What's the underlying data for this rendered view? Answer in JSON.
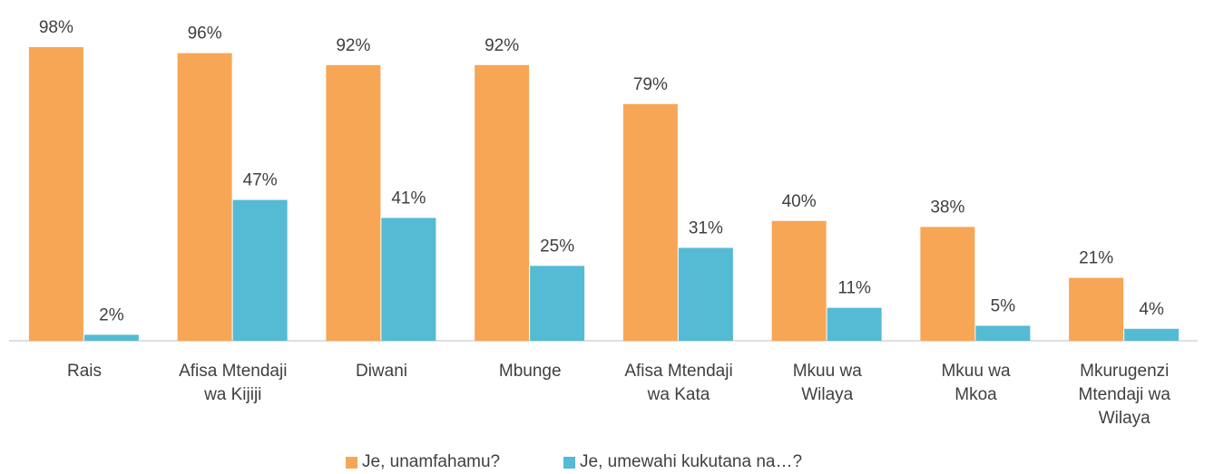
{
  "chart_data": {
    "type": "bar",
    "categories": [
      "Rais",
      "Afisa Mtendaji\nwa Kijiji",
      "Diwani",
      "Mbunge",
      "Afisa Mtendaji\nwa Kata",
      "Mkuu wa\nWilaya",
      "Mkuu wa\nMkoa",
      "Mkurugenzi\nMtendaji wa\nWilaya"
    ],
    "series": [
      {
        "name": "Je, unamfahamu?",
        "color": "#f7a655",
        "values": [
          98,
          96,
          92,
          92,
          79,
          40,
          38,
          21
        ],
        "value_labels": [
          "98%",
          "96%",
          "92%",
          "92%",
          "79%",
          "40%",
          "38%",
          "21%"
        ]
      },
      {
        "name": "Je, umewahi kukutana na…?",
        "color": "#55bad4",
        "values": [
          2,
          47,
          41,
          25,
          31,
          11,
          5,
          4
        ],
        "value_labels": [
          "2%",
          "47%",
          "41%",
          "25%",
          "31%",
          "11%",
          "5%",
          "4%"
        ]
      }
    ],
    "legend": "bottom"
  }
}
